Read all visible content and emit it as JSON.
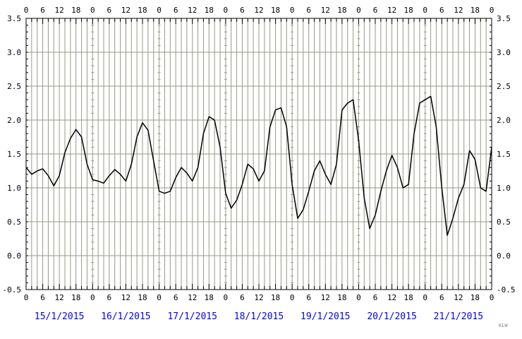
{
  "chart_data": {
    "type": "line",
    "title": "",
    "xlabel": "",
    "ylabel": "",
    "ylim": [
      -0.5,
      3.5
    ],
    "y_ticks": [
      "-0.5",
      "0.0",
      "0.5",
      "1.0",
      "1.5",
      "2.0",
      "2.5",
      "3.0",
      "3.5"
    ],
    "x_range_hours": [
      0,
      168
    ],
    "x_hour_labels": [
      "0",
      "6",
      "12",
      "18",
      "0",
      "6",
      "12",
      "18",
      "0",
      "6",
      "12",
      "18",
      "0",
      "6",
      "12",
      "18",
      "0",
      "6",
      "12",
      "18",
      "0",
      "6",
      "12",
      "18",
      "0",
      "6",
      "12",
      "18",
      "0"
    ],
    "dates": [
      "15/1/2015",
      "16/1/2015",
      "17/1/2015",
      "18/1/2015",
      "19/1/2015",
      "20/1/2015",
      "21/1/2015"
    ],
    "grid": true,
    "series": [
      {
        "x": [
          0,
          2,
          4,
          6,
          8,
          10,
          12,
          14,
          16,
          18,
          20,
          22,
          24,
          26,
          28,
          30,
          32,
          34,
          36,
          38,
          40,
          42,
          44,
          46,
          48,
          50,
          52,
          54,
          56,
          58,
          60,
          62,
          64,
          66,
          68,
          70,
          72,
          74,
          76,
          78,
          80,
          82,
          84,
          86,
          88,
          90,
          92,
          94,
          96,
          98,
          100,
          102,
          104,
          106,
          108,
          110,
          112,
          114,
          116,
          118,
          120,
          122,
          124,
          126,
          128,
          130,
          132,
          134,
          136,
          138,
          140,
          142,
          144,
          146,
          148,
          150,
          152,
          154,
          156,
          158,
          160,
          162,
          164,
          166,
          168
        ],
        "y": [
          1.3,
          1.2,
          1.25,
          1.28,
          1.18,
          1.03,
          1.18,
          1.52,
          1.73,
          1.86,
          1.75,
          1.35,
          1.12,
          1.1,
          1.07,
          1.18,
          1.27,
          1.2,
          1.1,
          1.35,
          1.75,
          1.96,
          1.85,
          1.4,
          0.95,
          0.92,
          0.95,
          1.15,
          1.3,
          1.22,
          1.1,
          1.3,
          1.8,
          2.05,
          2.0,
          1.6,
          0.92,
          0.7,
          0.82,
          1.05,
          1.35,
          1.28,
          1.1,
          1.25,
          1.9,
          2.15,
          2.18,
          1.9,
          1.05,
          0.55,
          0.68,
          0.95,
          1.25,
          1.4,
          1.2,
          1.05,
          1.35,
          2.15,
          2.25,
          2.3,
          1.7,
          0.85,
          0.4,
          0.6,
          0.95,
          1.25,
          1.48,
          1.3,
          1.0,
          1.05,
          1.8,
          2.25,
          2.3,
          2.35,
          1.9,
          1.0,
          0.3,
          0.55,
          0.85,
          1.05,
          1.55,
          1.42,
          1.0,
          0.95,
          1.6
        ]
      }
    ],
    "colors": {
      "line": "#000000",
      "grid": "#99998a",
      "frame": "#000000",
      "dates": "#0000ff"
    }
  },
  "credit": "KLW"
}
